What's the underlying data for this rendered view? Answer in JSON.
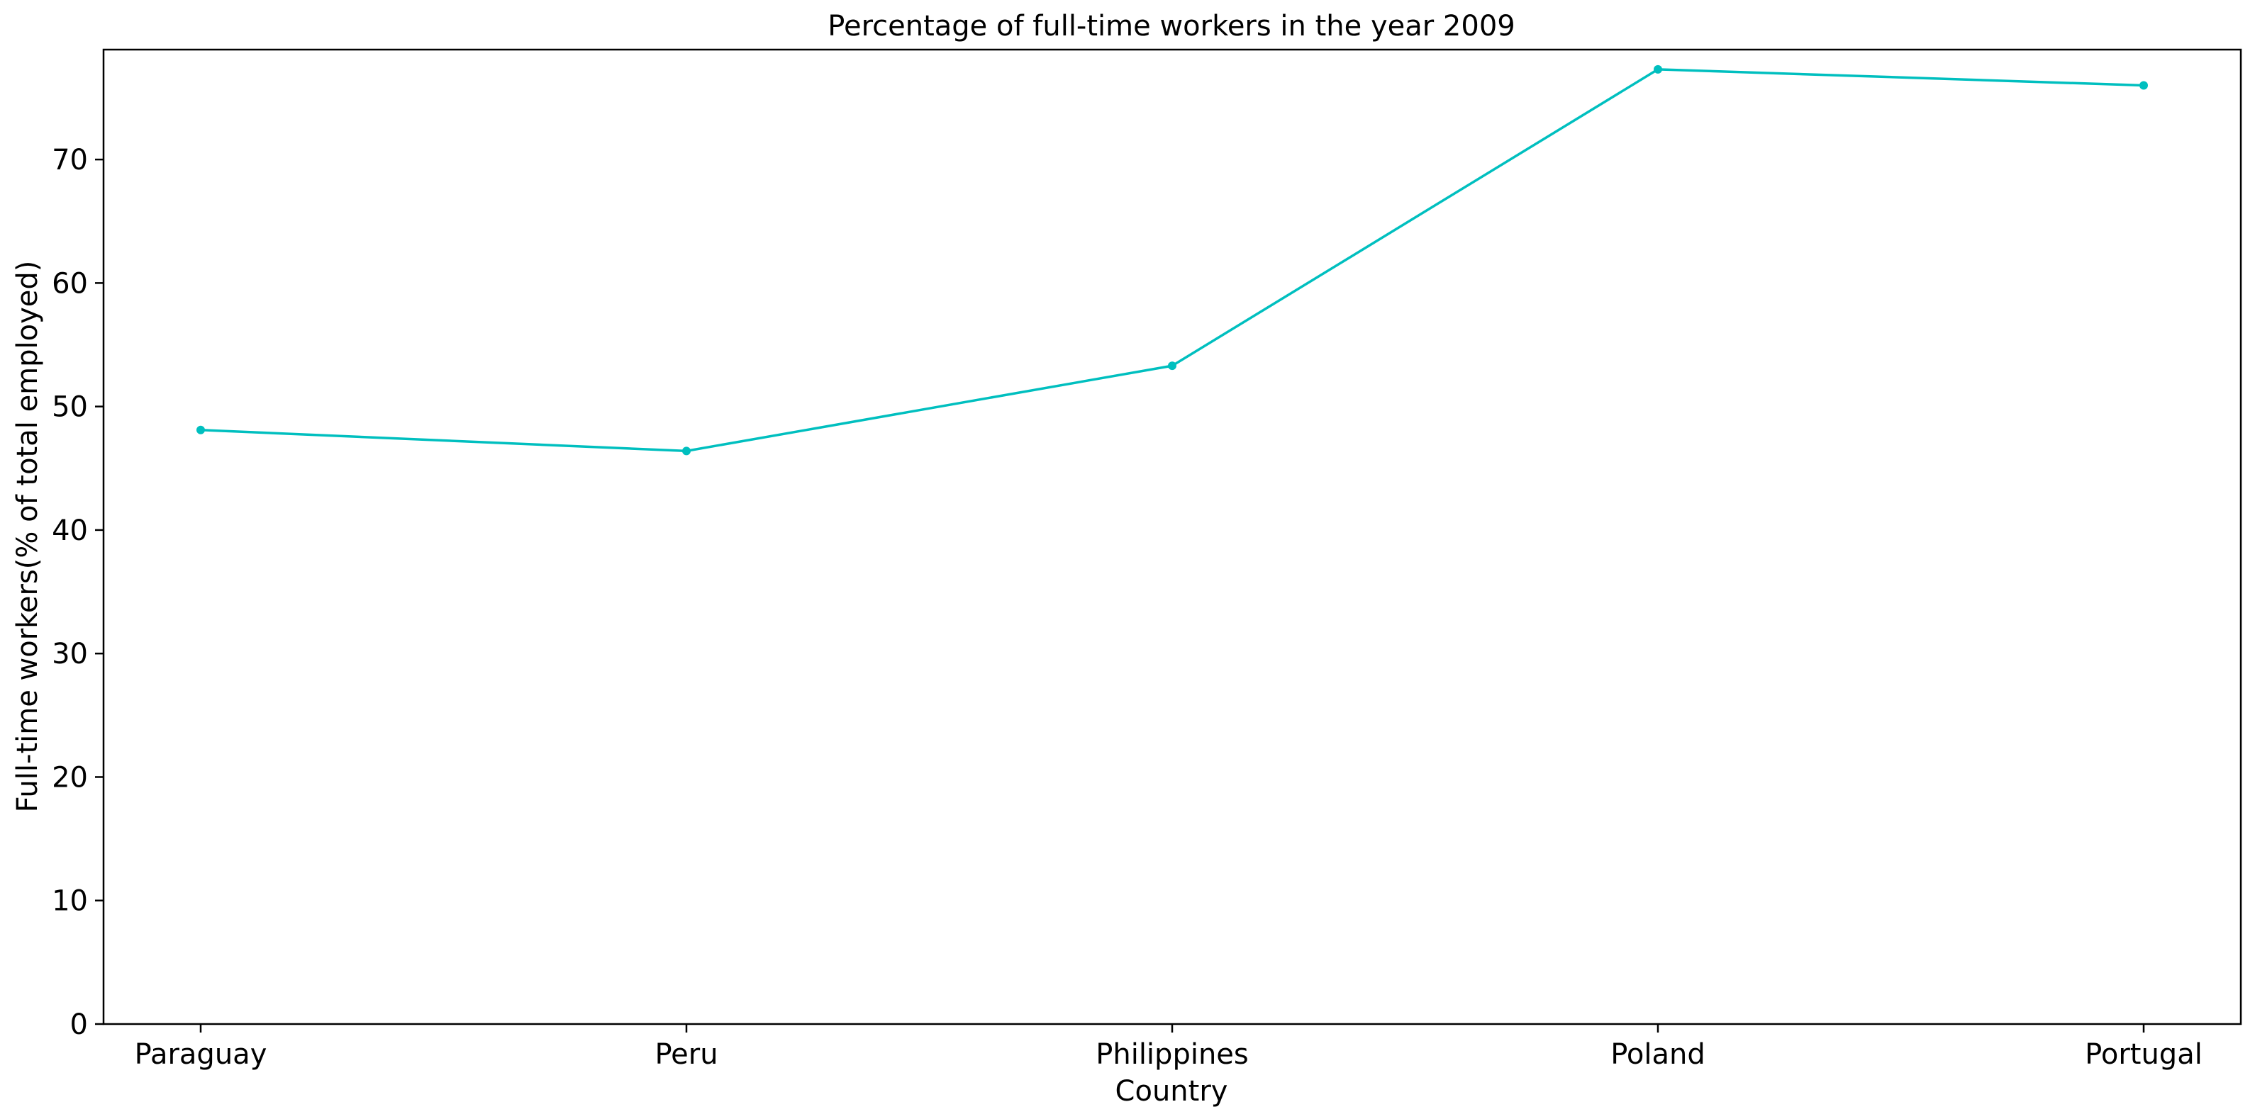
{
  "chart_data": {
    "type": "line",
    "title": "Percentage of full-time workers in the year 2009",
    "xlabel": "Country",
    "ylabel": "Full-time workers(% of total employed)",
    "categories": [
      "Paraguay",
      "Peru",
      "Philippines",
      "Poland",
      "Portugal"
    ],
    "series": [
      {
        "values": [
          48.1,
          46.4,
          53.3,
          77.3,
          76.0
        ],
        "color": "#00bfbf",
        "marker": "circle"
      }
    ],
    "ylim": [
      0,
      78.9
    ],
    "yticks": [
      0,
      10,
      20,
      30,
      40,
      50,
      60,
      70
    ],
    "grid": false,
    "legend": "none"
  }
}
